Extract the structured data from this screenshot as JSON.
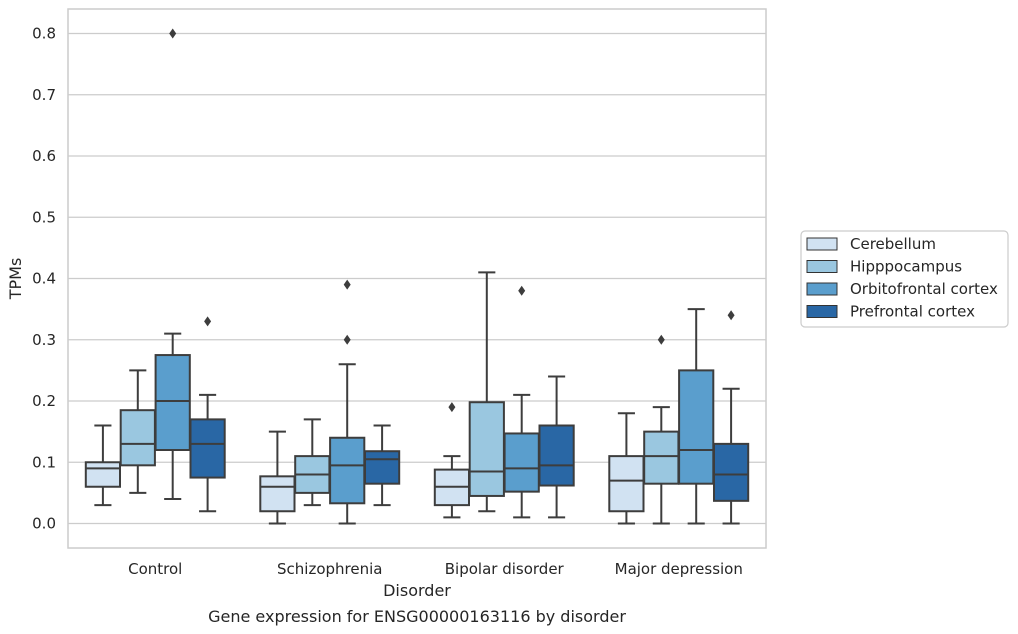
{
  "chart_data": {
    "type": "box",
    "title": "",
    "caption": "Gene expression for ENSG00000163116 by disorder",
    "xlabel": "Disorder",
    "ylabel": "TPMs",
    "ylim": [
      -0.04,
      0.84
    ],
    "yticks": [
      "0.0",
      "0.1",
      "0.2",
      "0.3",
      "0.4",
      "0.5",
      "0.6",
      "0.7",
      "0.8"
    ],
    "grid": true,
    "legend_position": "right",
    "categories": [
      "Control",
      "Schizophrenia",
      "Bipolar disorder",
      "Major depression"
    ],
    "series": [
      {
        "name": "Cerebellum",
        "color": "#d1e2f2",
        "boxes": [
          {
            "whislo": 0.03,
            "q1": 0.06,
            "med": 0.09,
            "q3": 0.1,
            "whishi": 0.16,
            "fliers": []
          },
          {
            "whislo": 0.0,
            "q1": 0.02,
            "med": 0.06,
            "q3": 0.077,
            "whishi": 0.15,
            "fliers": []
          },
          {
            "whislo": 0.01,
            "q1": 0.03,
            "med": 0.06,
            "q3": 0.088,
            "whishi": 0.11,
            "fliers": [
              0.19
            ]
          },
          {
            "whislo": 0.0,
            "q1": 0.02,
            "med": 0.07,
            "q3": 0.11,
            "whishi": 0.18,
            "fliers": []
          }
        ]
      },
      {
        "name": "Hipppocampus",
        "color": "#9ac7e0",
        "boxes": [
          {
            "whislo": 0.05,
            "q1": 0.095,
            "med": 0.13,
            "q3": 0.185,
            "whishi": 0.25,
            "fliers": []
          },
          {
            "whislo": 0.03,
            "q1": 0.05,
            "med": 0.08,
            "q3": 0.11,
            "whishi": 0.17,
            "fliers": []
          },
          {
            "whislo": 0.02,
            "q1": 0.045,
            "med": 0.085,
            "q3": 0.198,
            "whishi": 0.41,
            "fliers": []
          },
          {
            "whislo": 0.0,
            "q1": 0.065,
            "med": 0.11,
            "q3": 0.15,
            "whishi": 0.19,
            "fliers": [
              0.3
            ]
          }
        ]
      },
      {
        "name": "Orbitofrontal cortex",
        "color": "#5a9ecd",
        "boxes": [
          {
            "whislo": 0.04,
            "q1": 0.12,
            "med": 0.2,
            "q3": 0.275,
            "whishi": 0.31,
            "fliers": [
              0.8
            ]
          },
          {
            "whislo": 0.0,
            "q1": 0.033,
            "med": 0.095,
            "q3": 0.14,
            "whishi": 0.26,
            "fliers": [
              0.3,
              0.39
            ]
          },
          {
            "whislo": 0.01,
            "q1": 0.052,
            "med": 0.09,
            "q3": 0.147,
            "whishi": 0.21,
            "fliers": [
              0.38
            ]
          },
          {
            "whislo": 0.0,
            "q1": 0.065,
            "med": 0.12,
            "q3": 0.25,
            "whishi": 0.35,
            "fliers": []
          }
        ]
      },
      {
        "name": "Prefrontal cortex",
        "color": "#2967a5",
        "boxes": [
          {
            "whislo": 0.02,
            "q1": 0.075,
            "med": 0.13,
            "q3": 0.17,
            "whishi": 0.21,
            "fliers": [
              0.33
            ]
          },
          {
            "whislo": 0.03,
            "q1": 0.065,
            "med": 0.105,
            "q3": 0.118,
            "whishi": 0.16,
            "fliers": []
          },
          {
            "whislo": 0.01,
            "q1": 0.062,
            "med": 0.095,
            "q3": 0.16,
            "whishi": 0.24,
            "fliers": []
          },
          {
            "whislo": 0.0,
            "q1": 0.037,
            "med": 0.08,
            "q3": 0.13,
            "whishi": 0.22,
            "fliers": [
              0.34
            ]
          }
        ]
      }
    ]
  }
}
